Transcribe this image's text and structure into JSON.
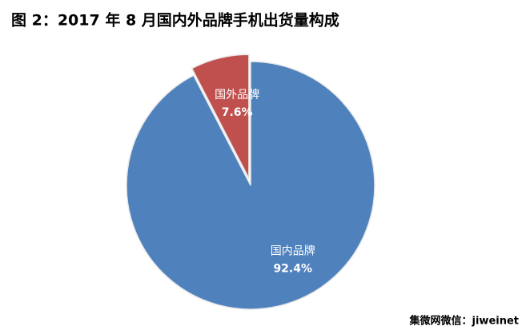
{
  "chart_data": {
    "type": "pie",
    "title": "图 2：2017 年 8 月国内外品牌手机出货量构成",
    "categories": [
      "国内品牌",
      "国外品牌"
    ],
    "values": [
      92.4,
      7.6
    ],
    "value_labels": [
      "92.4%",
      "7.6%"
    ],
    "colors": [
      "#4f81bd",
      "#c0504d"
    ],
    "exploded": [
      false,
      true
    ],
    "source": "集微网微信：jiweinet"
  }
}
